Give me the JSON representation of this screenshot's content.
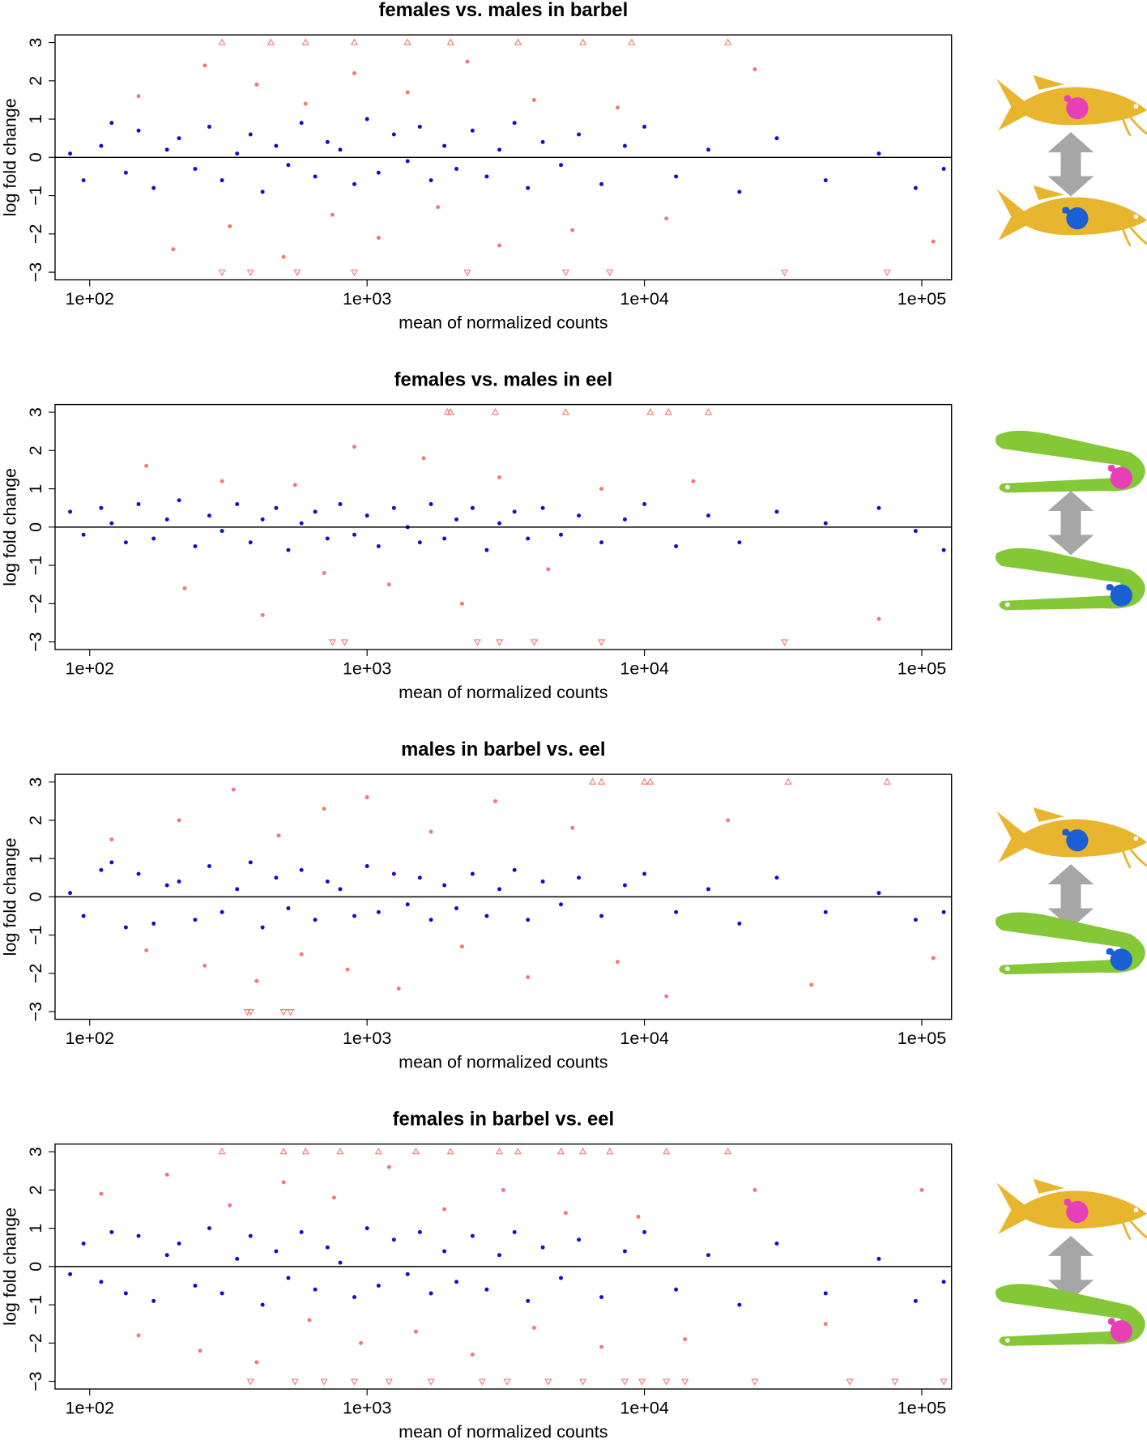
{
  "chart_data": [
    {
      "type": "scatter",
      "title": "females vs. males in barbel",
      "xlabel": "mean of normalized counts",
      "ylabel": "log fold change",
      "x_log": true,
      "xlim": [
        75,
        128000
      ],
      "ylim": [
        -3.2,
        3.2
      ],
      "xticks": [
        {
          "value": 100,
          "label": "1e+02"
        },
        {
          "value": 1000,
          "label": "1e+03"
        },
        {
          "value": 10000,
          "label": "1e+04"
        },
        {
          "value": 100000,
          "label": "1e+05"
        }
      ],
      "yticks": [
        {
          "value": -3,
          "label": "−3"
        },
        {
          "value": -2,
          "label": "−2"
        },
        {
          "value": -1,
          "label": "−1"
        },
        0,
        1,
        2,
        3
      ],
      "hline": 0,
      "series": [
        {
          "color": "#f07b74",
          "marker": "circle",
          "x": [
            150,
            200,
            260,
            320,
            400,
            500,
            600,
            750,
            900,
            1100,
            1400,
            1800,
            2300,
            3000,
            4000,
            5500,
            8000,
            12000,
            25000,
            110000
          ],
          "values": [
            1.6,
            -2.4,
            2.4,
            -1.8,
            1.9,
            -2.6,
            1.4,
            -1.5,
            2.2,
            -2.1,
            1.7,
            -1.3,
            2.5,
            -2.3,
            1.5,
            -1.9,
            1.3,
            -1.6,
            2.3,
            -2.2
          ]
        },
        {
          "color": "#f07b74",
          "marker": "triangle-up",
          "x": [
            300,
            450,
            600,
            900,
            1400,
            2000,
            3500,
            6000,
            9000,
            20000
          ],
          "values": [
            3,
            3,
            3,
            3,
            3,
            3,
            3,
            3,
            3,
            3
          ]
        },
        {
          "color": "#f07b74",
          "marker": "triangle-down",
          "x": [
            300,
            380,
            560,
            900,
            2300,
            5200,
            7500,
            32000,
            75000
          ],
          "values": [
            -3,
            -3,
            -3,
            -3,
            -3,
            -3,
            -3,
            -3,
            -3
          ]
        },
        {
          "color": "#1010c8",
          "marker": "circle",
          "x": [
            85,
            95,
            110,
            120,
            135,
            150,
            170,
            190,
            210,
            240,
            270,
            300,
            340,
            380,
            420,
            470,
            520,
            580,
            650,
            720,
            800,
            900,
            1000,
            1100,
            1250,
            1400,
            1550,
            1700,
            1900,
            2100,
            2400,
            2700,
            3000,
            3400,
            3800,
            4300,
            5000,
            5800,
            7000,
            8500,
            10000,
            13000,
            17000,
            22000,
            30000,
            45000,
            70000,
            95000,
            120000
          ],
          "values": [
            0.1,
            -0.6,
            0.3,
            0.9,
            -0.4,
            0.7,
            -0.8,
            0.2,
            0.5,
            -0.3,
            0.8,
            -0.6,
            0.1,
            0.6,
            -0.9,
            0.3,
            -0.2,
            0.9,
            -0.5,
            0.4,
            0.2,
            -0.7,
            1.0,
            -0.4,
            0.6,
            -0.1,
            0.8,
            -0.6,
            0.3,
            -0.3,
            0.7,
            -0.5,
            0.2,
            0.9,
            -0.8,
            0.4,
            -0.2,
            0.6,
            -0.7,
            0.3,
            0.8,
            -0.5,
            0.2,
            -0.9,
            0.5,
            -0.6,
            0.1,
            -0.8,
            -0.3
          ]
        }
      ]
    },
    {
      "type": "scatter",
      "title": "females vs. males in eel",
      "xlabel": "mean of normalized counts",
      "ylabel": "log fold change",
      "x_log": true,
      "xlim": [
        75,
        128000
      ],
      "ylim": [
        -3.2,
        3.2
      ],
      "xticks": [
        {
          "value": 100,
          "label": "1e+02"
        },
        {
          "value": 1000,
          "label": "1e+03"
        },
        {
          "value": 10000,
          "label": "1e+04"
        },
        {
          "value": 100000,
          "label": "1e+05"
        }
      ],
      "yticks": [
        {
          "value": -3,
          "label": "−3"
        },
        {
          "value": -2,
          "label": "−2"
        },
        {
          "value": -1,
          "label": "−1"
        },
        0,
        1,
        2,
        3
      ],
      "hline": 0,
      "series": [
        {
          "color": "#f07b74",
          "marker": "circle",
          "x": [
            160,
            220,
            300,
            420,
            550,
            700,
            900,
            1200,
            1600,
            2200,
            3000,
            4500,
            7000,
            15000,
            70000
          ],
          "values": [
            1.6,
            -1.6,
            1.2,
            -2.3,
            1.1,
            -1.2,
            2.1,
            -1.5,
            1.8,
            -2.0,
            1.3,
            -1.1,
            1.0,
            1.2,
            -2.4
          ]
        },
        {
          "color": "#f07b74",
          "marker": "triangle-up",
          "x": [
            1950,
            2000,
            2900,
            5200,
            10500,
            12200,
            17000
          ],
          "values": [
            3,
            3,
            3,
            3,
            3,
            3,
            3
          ]
        },
        {
          "color": "#f07b74",
          "marker": "triangle-down",
          "x": [
            750,
            830,
            2500,
            3000,
            4000,
            7000,
            32000
          ],
          "values": [
            -3,
            -3,
            -3,
            -3,
            -3,
            -3,
            -3
          ]
        },
        {
          "color": "#1010c8",
          "marker": "circle",
          "x": [
            85,
            95,
            110,
            120,
            135,
            150,
            170,
            190,
            210,
            240,
            270,
            300,
            340,
            380,
            420,
            470,
            520,
            580,
            650,
            720,
            800,
            900,
            1000,
            1100,
            1250,
            1400,
            1550,
            1700,
            1900,
            2100,
            2400,
            2700,
            3000,
            3400,
            3800,
            4300,
            5000,
            5800,
            7000,
            8500,
            10000,
            13000,
            17000,
            22000,
            30000,
            45000,
            70000,
            95000,
            120000
          ],
          "values": [
            0.4,
            -0.2,
            0.5,
            0.1,
            -0.4,
            0.6,
            -0.3,
            0.2,
            0.7,
            -0.5,
            0.3,
            -0.1,
            0.6,
            -0.4,
            0.2,
            0.5,
            -0.6,
            0.1,
            0.4,
            -0.3,
            0.6,
            -0.2,
            0.3,
            -0.5,
            0.5,
            0.0,
            -0.4,
            0.6,
            -0.3,
            0.2,
            0.5,
            -0.6,
            0.1,
            0.4,
            -0.3,
            0.5,
            -0.2,
            0.3,
            -0.4,
            0.2,
            0.6,
            -0.5,
            0.3,
            -0.4,
            0.4,
            0.1,
            0.5,
            -0.1,
            -0.6
          ]
        }
      ]
    },
    {
      "type": "scatter",
      "title": "males in barbel vs. eel",
      "xlabel": "mean of normalized counts",
      "ylabel": "log fold change",
      "x_log": true,
      "xlim": [
        75,
        128000
      ],
      "ylim": [
        -3.2,
        3.2
      ],
      "xticks": [
        {
          "value": 100,
          "label": "1e+02"
        },
        {
          "value": 1000,
          "label": "1e+03"
        },
        {
          "value": 10000,
          "label": "1e+04"
        },
        {
          "value": 100000,
          "label": "1e+05"
        }
      ],
      "yticks": [
        {
          "value": -3,
          "label": "−3"
        },
        {
          "value": -2,
          "label": "−2"
        },
        {
          "value": -1,
          "label": "−1"
        },
        0,
        1,
        2,
        3
      ],
      "hline": 0,
      "series": [
        {
          "color": "#f07b74",
          "marker": "circle",
          "x": [
            120,
            160,
            210,
            260,
            330,
            400,
            480,
            580,
            700,
            850,
            1000,
            1300,
            1700,
            2200,
            2900,
            3800,
            5500,
            8000,
            12000,
            20000,
            40000,
            110000
          ],
          "values": [
            1.5,
            -1.4,
            2.0,
            -1.8,
            2.8,
            -2.2,
            1.6,
            -1.5,
            2.3,
            -1.9,
            2.6,
            -2.4,
            1.7,
            -1.3,
            2.5,
            -2.1,
            1.8,
            -1.7,
            -2.6,
            2.0,
            -2.3,
            -1.6
          ]
        },
        {
          "color": "#f07b74",
          "marker": "triangle-up",
          "x": [
            6500,
            7000,
            10000,
            10500,
            33000,
            75000
          ],
          "values": [
            3,
            3,
            3,
            3,
            3,
            3
          ]
        },
        {
          "color": "#f07b74",
          "marker": "triangle-down",
          "x": [
            370,
            380,
            500,
            530
          ],
          "values": [
            -3,
            -3,
            -3,
            -3
          ]
        },
        {
          "color": "#1010c8",
          "marker": "circle",
          "x": [
            85,
            95,
            110,
            120,
            135,
            150,
            170,
            190,
            210,
            240,
            270,
            300,
            340,
            380,
            420,
            470,
            520,
            580,
            650,
            720,
            800,
            900,
            1000,
            1100,
            1250,
            1400,
            1550,
            1700,
            1900,
            2100,
            2400,
            2700,
            3000,
            3400,
            3800,
            4300,
            5000,
            5800,
            7000,
            8500,
            10000,
            13000,
            17000,
            22000,
            30000,
            45000,
            70000,
            95000,
            120000
          ],
          "values": [
            0.1,
            -0.5,
            0.7,
            0.9,
            -0.8,
            0.6,
            -0.7,
            0.3,
            0.4,
            -0.6,
            0.8,
            -0.4,
            0.2,
            0.9,
            -0.8,
            0.5,
            -0.3,
            0.7,
            -0.6,
            0.4,
            0.2,
            -0.5,
            0.8,
            -0.4,
            0.6,
            -0.2,
            0.5,
            -0.6,
            0.3,
            -0.3,
            0.6,
            -0.5,
            0.2,
            0.7,
            -0.6,
            0.4,
            -0.2,
            0.5,
            -0.5,
            0.3,
            0.6,
            -0.4,
            0.2,
            -0.7,
            0.5,
            -0.4,
            0.1,
            -0.6,
            -0.4
          ]
        }
      ]
    },
    {
      "type": "scatter",
      "title": "females in barbel vs. eel",
      "xlabel": "mean of normalized counts",
      "ylabel": "log fold change",
      "x_log": true,
      "xlim": [
        75,
        128000
      ],
      "ylim": [
        -3.2,
        3.2
      ],
      "xticks": [
        {
          "value": 100,
          "label": "1e+02"
        },
        {
          "value": 1000,
          "label": "1e+03"
        },
        {
          "value": 10000,
          "label": "1e+04"
        },
        {
          "value": 100000,
          "label": "1e+05"
        }
      ],
      "yticks": [
        {
          "value": -3,
          "label": "−3"
        },
        {
          "value": -2,
          "label": "−2"
        },
        {
          "value": -1,
          "label": "−1"
        },
        0,
        1,
        2,
        3
      ],
      "hline": 0,
      "series": [
        {
          "color": "#f07b74",
          "marker": "circle",
          "x": [
            110,
            150,
            190,
            250,
            320,
            400,
            500,
            620,
            760,
            950,
            1200,
            1500,
            1900,
            2400,
            3100,
            4000,
            5200,
            7000,
            9500,
            14000,
            25000,
            45000,
            100000
          ],
          "values": [
            1.9,
            -1.8,
            2.4,
            -2.2,
            1.6,
            -2.5,
            2.2,
            -1.4,
            1.8,
            -2.0,
            2.6,
            -1.7,
            1.5,
            -2.3,
            2.0,
            -1.6,
            1.4,
            -2.1,
            1.3,
            -1.9,
            2.0,
            -1.5,
            2.0
          ]
        },
        {
          "color": "#f07b74",
          "marker": "triangle-up",
          "x": [
            300,
            500,
            600,
            800,
            1100,
            1500,
            2000,
            3000,
            3500,
            5000,
            6000,
            7500,
            12000,
            20000
          ],
          "values": [
            3,
            3,
            3,
            3,
            3,
            3,
            3,
            3,
            3,
            3,
            3,
            3,
            3,
            3
          ]
        },
        {
          "color": "#f07b74",
          "marker": "triangle-down",
          "x": [
            380,
            550,
            700,
            900,
            1200,
            1700,
            2600,
            3200,
            4500,
            6000,
            8500,
            9800,
            12000,
            14000,
            25000,
            55000,
            80000,
            120000
          ],
          "values": [
            -3,
            -3,
            -3,
            -3,
            -3,
            -3,
            -3,
            -3,
            -3,
            -3,
            -3,
            -3,
            -3,
            -3,
            -3,
            -3,
            -3,
            -3
          ]
        },
        {
          "color": "#1010c8",
          "marker": "circle",
          "x": [
            85,
            95,
            110,
            120,
            135,
            150,
            170,
            190,
            210,
            240,
            270,
            300,
            340,
            380,
            420,
            470,
            520,
            580,
            650,
            720,
            800,
            900,
            1000,
            1100,
            1250,
            1400,
            1550,
            1700,
            1900,
            2100,
            2400,
            2700,
            3000,
            3400,
            3800,
            4300,
            5000,
            5800,
            7000,
            8500,
            10000,
            13000,
            17000,
            22000,
            30000,
            45000,
            70000,
            95000,
            120000
          ],
          "values": [
            -0.2,
            0.6,
            -0.4,
            0.9,
            -0.7,
            0.8,
            -0.9,
            0.3,
            0.6,
            -0.5,
            1.0,
            -0.7,
            0.2,
            0.8,
            -1.0,
            0.4,
            -0.3,
            0.9,
            -0.6,
            0.5,
            0.1,
            -0.8,
            1.0,
            -0.5,
            0.7,
            -0.2,
            0.9,
            -0.7,
            0.4,
            -0.4,
            0.8,
            -0.6,
            0.3,
            0.9,
            -0.9,
            0.5,
            -0.3,
            0.7,
            -0.8,
            0.4,
            0.9,
            -0.6,
            0.3,
            -1.0,
            0.6,
            -0.7,
            0.2,
            -0.9,
            -0.4
          ]
        }
      ]
    }
  ]
}
